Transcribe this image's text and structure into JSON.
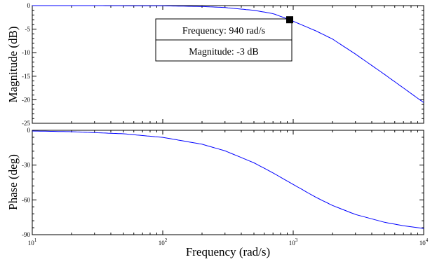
{
  "chart_data": [
    {
      "type": "line",
      "xscale": "log",
      "xlim": [
        10,
        10000
      ],
      "ylim": [
        -25,
        0
      ],
      "ylabel": "Magnitude (dB)",
      "yticks": [
        0,
        -5,
        -10,
        -15,
        -20,
        -25
      ],
      "color": "#0000ff",
      "grid": false,
      "series": [
        {
          "x": [
            10,
            30,
            100,
            200,
            300,
            500,
            700,
            940,
            1500,
            2000,
            3000,
            5000,
            7000,
            10000
          ],
          "y": [
            0,
            0,
            -0.05,
            -0.19,
            -0.41,
            -1.0,
            -1.7,
            -3.0,
            -5.4,
            -7.1,
            -10.3,
            -14.6,
            -17.5,
            -20.6
          ]
        }
      ],
      "annotation": {
        "x": 940,
        "y": -3,
        "lines": [
          "Frequency: 940 rad/s",
          "Magnitude: -3 dB"
        ]
      }
    },
    {
      "type": "line",
      "xscale": "log",
      "xlim": [
        10,
        10000
      ],
      "ylim": [
        -90,
        0
      ],
      "ylabel": "Phase (deg)",
      "xlabel": "Frequency (rad/s)",
      "yticks": [
        0,
        -30,
        -60,
        -90
      ],
      "xticks": [
        {
          "value": 10,
          "base": "10",
          "exp": "1"
        },
        {
          "value": 100,
          "base": "10",
          "exp": "2"
        },
        {
          "value": 1000,
          "base": "10",
          "exp": "3"
        },
        {
          "value": 10000,
          "base": "10",
          "exp": "4"
        }
      ],
      "color": "#0000ff",
      "grid": false,
      "series": [
        {
          "x": [
            10,
            20,
            50,
            100,
            200,
            300,
            500,
            700,
            940,
            1500,
            2000,
            3000,
            5000,
            7000,
            10000
          ],
          "y": [
            -0.6,
            -1.2,
            -3.0,
            -6.1,
            -12.0,
            -17.7,
            -28.0,
            -36.7,
            -45.0,
            -57.9,
            -64.8,
            -72.6,
            -79.3,
            -82.3,
            -84.6
          ]
        }
      ]
    }
  ]
}
